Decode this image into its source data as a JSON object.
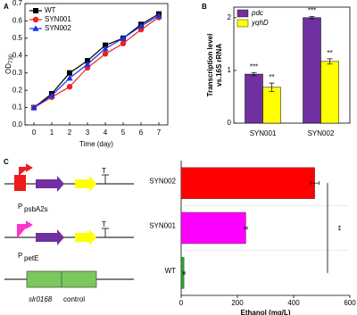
{
  "chart_data": [
    {
      "type": "line",
      "panel": "A",
      "xlabel": "Time (day)",
      "ylabel": "OD",
      "ylabel_subscript": "730",
      "x": [
        0,
        1,
        2,
        3,
        4,
        5,
        6,
        7
      ],
      "xlim": [
        -0.5,
        7.5
      ],
      "xticks": [
        0,
        1,
        2,
        3,
        4,
        5,
        6,
        7
      ],
      "ylim": [
        0,
        0.7
      ],
      "yticks": [
        {
          "value": 0,
          "label": "0.0"
        },
        0.1,
        0.2,
        0.3,
        0.4,
        0.5,
        0.6,
        0.7
      ],
      "legend": "upper left",
      "series": [
        {
          "name": "WT",
          "color": "#000000",
          "marker": "square",
          "values": [
            0.1,
            0.18,
            0.3,
            0.37,
            0.46,
            0.5,
            0.58,
            0.64
          ]
        },
        {
          "name": "SYN001",
          "color": "#e8221f",
          "marker": "circle",
          "values": [
            0.1,
            0.16,
            0.22,
            0.33,
            0.41,
            0.47,
            0.55,
            0.62
          ]
        },
        {
          "name": "SYN002",
          "color": "#1f2ee8",
          "marker": "triangle",
          "values": [
            0.1,
            0.17,
            0.27,
            0.35,
            0.44,
            0.5,
            0.57,
            0.63
          ]
        }
      ]
    },
    {
      "type": "bar",
      "panel": "B",
      "ylabel": [
        "Transcription level",
        "vs.16S rRNA"
      ],
      "categories": [
        "SYN001",
        "SYN002"
      ],
      "ylim": [
        0,
        2.2
      ],
      "yticks": [
        0,
        1,
        2
      ],
      "legend": "upper left",
      "series": [
        {
          "name": "pdc",
          "color": "#7030a0",
          "values": [
            0.93,
            2.0
          ],
          "errors": [
            0.03,
            0.02
          ],
          "annotations": [
            "***",
            "***"
          ]
        },
        {
          "name": "yqhD",
          "color": "#ffff00",
          "values": [
            0.68,
            1.17
          ],
          "errors": [
            0.08,
            0.05
          ],
          "annotations": [
            "**",
            "**"
          ]
        }
      ]
    },
    {
      "type": "barh",
      "panel": "C",
      "xlabel": "Ethanol (mg/L)",
      "categories": [
        "SYN002",
        "SYN001",
        "WT"
      ],
      "values": [
        475,
        230,
        10
      ],
      "errors": [
        15,
        5,
        3
      ],
      "colors": [
        "#ff0000",
        "#ff00ff",
        "#22aa22"
      ],
      "xlim": [
        0,
        600
      ],
      "xticks": [
        0,
        200,
        400,
        600
      ],
      "significance": "**"
    }
  ],
  "constructs": [
    {
      "promoter": "P",
      "promoter_sub": "psbA2s",
      "terminator": "T"
    },
    {
      "promoter": "P",
      "promoter_sub": "petE",
      "terminator": "T"
    },
    {
      "label_italic": "slr0168",
      "label": "control"
    }
  ]
}
